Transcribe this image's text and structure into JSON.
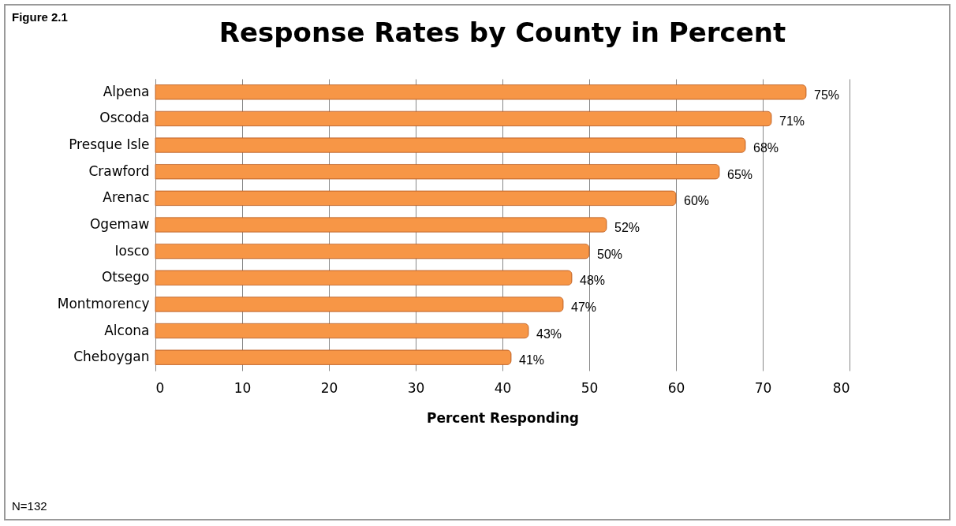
{
  "chart_data": {
    "type": "bar",
    "orientation": "horizontal",
    "title": "Response Rates by County in Percent",
    "xlabel": "Percent Responding",
    "annotations": [
      "Figure 2.1",
      "N=132"
    ],
    "categories": [
      "Alpena",
      "Oscoda",
      "Presque Isle",
      "Crawford",
      "Arenac",
      "Ogemaw",
      "Iosco",
      "Otsego",
      "Montmorency",
      "Alcona",
      "Cheboygan"
    ],
    "values": [
      75,
      71,
      68,
      65,
      60,
      52,
      50,
      48,
      47,
      43,
      41
    ],
    "value_labels": [
      "75%",
      "71%",
      "68%",
      "65%",
      "60%",
      "52%",
      "50%",
      "48%",
      "47%",
      "43%",
      "41%"
    ],
    "color": "#f79646",
    "xlim": [
      0,
      80
    ],
    "xticks": [
      0,
      10,
      20,
      30,
      40,
      50,
      60,
      70,
      80
    ],
    "grid": "x"
  }
}
